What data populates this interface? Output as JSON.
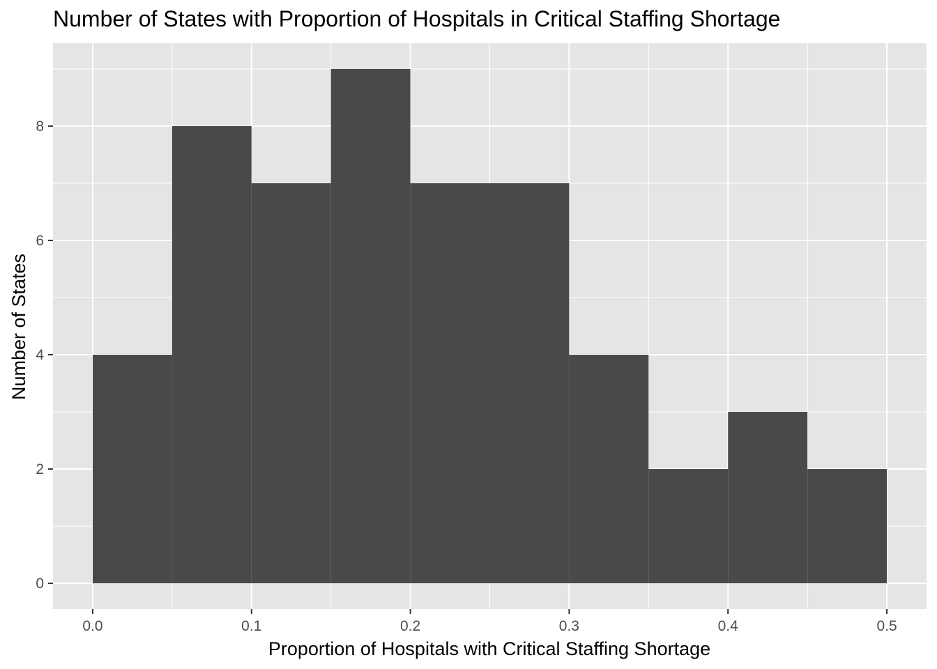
{
  "chart_data": {
    "type": "bar",
    "title": "Number of States with Proportion of Hospitals in Critical Staffing Shortage",
    "xlabel": "Proportion of Hospitals with Critical Staffing Shortage",
    "ylabel": "Number of States",
    "bins": [
      {
        "x0": 0.0,
        "x1": 0.05,
        "count": 4
      },
      {
        "x0": 0.05,
        "x1": 0.1,
        "count": 8
      },
      {
        "x0": 0.1,
        "x1": 0.15,
        "count": 7
      },
      {
        "x0": 0.15,
        "x1": 0.2,
        "count": 9
      },
      {
        "x0": 0.2,
        "x1": 0.25,
        "count": 7
      },
      {
        "x0": 0.25,
        "x1": 0.3,
        "count": 7
      },
      {
        "x0": 0.3,
        "x1": 0.35,
        "count": 4
      },
      {
        "x0": 0.35,
        "x1": 0.4,
        "count": 2
      },
      {
        "x0": 0.4,
        "x1": 0.45,
        "count": 3
      },
      {
        "x0": 0.45,
        "x1": 0.5,
        "count": 2
      }
    ],
    "xlim": [
      -0.025,
      0.525
    ],
    "ylim": [
      -0.45,
      9.45
    ],
    "x_ticks": [
      {
        "value": 0.0,
        "label": "0.0"
      },
      {
        "value": 0.1,
        "label": "0.1"
      },
      {
        "value": 0.2,
        "label": "0.2"
      },
      {
        "value": 0.3,
        "label": "0.3"
      },
      {
        "value": 0.4,
        "label": "0.4"
      },
      {
        "value": 0.5,
        "label": "0.5"
      }
    ],
    "x_minor_ticks": [
      0.05,
      0.15,
      0.25,
      0.35,
      0.45
    ],
    "y_ticks": [
      {
        "value": 0,
        "label": "0"
      },
      {
        "value": 2,
        "label": "2"
      },
      {
        "value": 4,
        "label": "4"
      },
      {
        "value": 6,
        "label": "6"
      },
      {
        "value": 8,
        "label": "8"
      }
    ],
    "y_minor_ticks": [
      1,
      3,
      5,
      7,
      9
    ],
    "grid": true,
    "legend": "none",
    "colors": {
      "panel_background": "#e5e5e5",
      "grid": "#ffffff",
      "bar_fill": "#494949",
      "tick_mark": "#333333"
    }
  }
}
